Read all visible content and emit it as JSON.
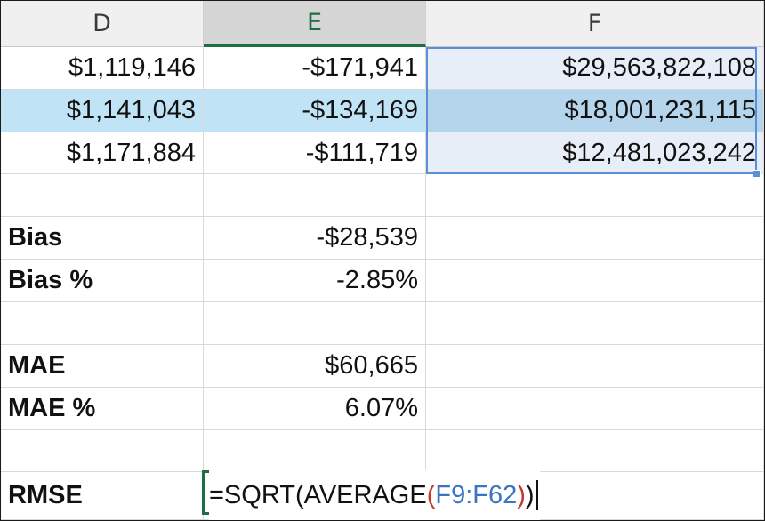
{
  "columns": [
    {
      "label": "D",
      "active": false
    },
    {
      "label": "E",
      "active": true
    },
    {
      "label": "F",
      "active": false
    }
  ],
  "rows": [
    {
      "d": "$1,119,146",
      "e": "-$171,941",
      "f": "$29,563,822,108",
      "highlighted": false
    },
    {
      "d": "$1,141,043",
      "e": "-$134,169",
      "f": "$18,001,231,115",
      "highlighted": true
    },
    {
      "d": "$1,171,884",
      "e": "-$111,719",
      "f": "$12,481,023,242",
      "highlighted": false
    },
    {
      "d": "",
      "e": "",
      "f": ""
    },
    {
      "d": "Bias",
      "e": "-$28,539",
      "f": ""
    },
    {
      "d": "Bias %",
      "e": "-2.85%",
      "f": ""
    },
    {
      "d": "",
      "e": "",
      "f": ""
    },
    {
      "d": "MAE",
      "e": "$60,665",
      "f": ""
    },
    {
      "d": "MAE %",
      "e": "6.07%",
      "f": ""
    },
    {
      "d": "",
      "e": "",
      "f": ""
    },
    {
      "d": "RMSE",
      "e": "",
      "f": ""
    }
  ],
  "editing": {
    "formula_prefix": "=SQRT(AVERAGE",
    "open_paren": "(",
    "range_ref": "F9:F62",
    "close_inner": ")",
    "close_outer": ")"
  },
  "colors": {
    "accent_green": "#1f6e43",
    "selection_blue": "#5b8fd6",
    "row_highlight": "#c0e4f5",
    "ref_blue": "#3a74c2",
    "paren_red": "#c0392b"
  }
}
